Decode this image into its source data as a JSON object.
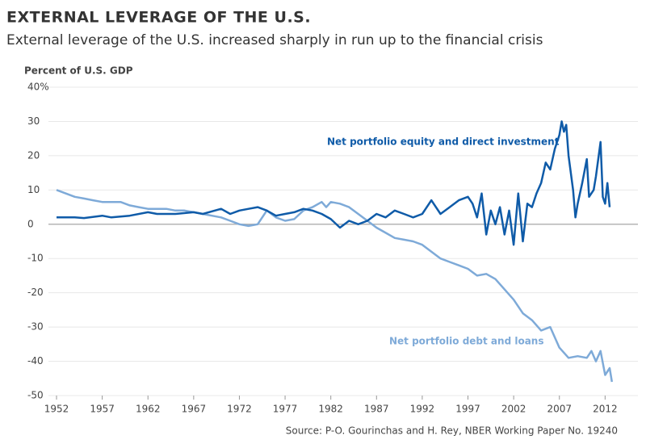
{
  "chart_data": {
    "type": "line",
    "title": "EXTERNAL LEVERAGE OF THE U.S.",
    "subtitle": "External leverage of the U.S. increased sharply in run up to the financial crisis",
    "y_label": "Percent of U.S. GDP",
    "source": "Source: P-O. Gourinchas and H. Rey, NBER Working Paper No. 19240",
    "xlim": [
      1952,
      2014
    ],
    "ylim": [
      -50,
      40
    ],
    "xticks": [
      1952,
      1957,
      1962,
      1967,
      1972,
      1977,
      1982,
      1987,
      1992,
      1997,
      2002,
      2007,
      2012
    ],
    "yticks": [
      -50,
      -40,
      -30,
      -20,
      -10,
      0,
      10,
      20,
      30,
      {
        "value": 40,
        "label": "40%"
      }
    ],
    "grid": true,
    "series": [
      {
        "name": "Net portfolio equity and direct investment",
        "color": "#0f5ba8",
        "x": [
          1952,
          1954,
          1955,
          1957,
          1958,
          1960,
          1962,
          1963,
          1965,
          1967,
          1968,
          1970,
          1971,
          1972,
          1973,
          1974,
          1975,
          1976,
          1977,
          1978,
          1979,
          1980,
          1981,
          1982,
          1983,
          1984,
          1985,
          1986,
          1987,
          1988,
          1989,
          1990,
          1991,
          1992,
          1993,
          1994,
          1995,
          1996,
          1997,
          1997.5,
          1998,
          1998.5,
          1999,
          1999.5,
          2000,
          2000.5,
          2001,
          2001.5,
          2002,
          2002.5,
          2003,
          2003.5,
          2004,
          2004.5,
          2005,
          2005.5,
          2006,
          2006.5,
          2007,
          2007.25,
          2007.5,
          2007.75,
          2008,
          2008.5,
          2008.75,
          2009,
          2009.5,
          2010,
          2010.25,
          2010.75,
          2011,
          2011.5,
          2011.75,
          2012,
          2012.25,
          2012.5
        ],
        "values": [
          2,
          2,
          1.8,
          2.5,
          2,
          2.5,
          3.5,
          3,
          3,
          3.5,
          3,
          4.5,
          3,
          4,
          4.5,
          5,
          4,
          2.5,
          3,
          3.5,
          4.5,
          4,
          3,
          1.5,
          -1,
          1,
          0,
          1,
          3,
          2,
          4,
          3,
          2,
          3,
          7,
          3,
          5,
          7,
          8,
          6,
          2,
          9,
          -3,
          4,
          0,
          5,
          -3,
          4,
          -6,
          9,
          -5,
          6,
          5,
          9,
          12,
          18,
          16,
          22,
          26,
          30,
          27,
          29,
          20,
          10,
          2,
          6,
          12,
          19,
          8,
          10,
          14,
          24,
          8,
          6,
          12,
          5
        ]
      },
      {
        "name": "Net portfolio debt and loans",
        "color": "#7eaad8",
        "x": [
          1952,
          1953,
          1954,
          1955,
          1956,
          1957,
          1958,
          1959,
          1960,
          1961,
          1962,
          1963,
          1964,
          1965,
          1966,
          1967,
          1968,
          1969,
          1970,
          1971,
          1972,
          1973,
          1974,
          1975,
          1976,
          1977,
          1978,
          1979,
          1980,
          1981,
          1981.5,
          1982,
          1983,
          1984,
          1985,
          1986,
          1987,
          1988,
          1989,
          1990,
          1991,
          1992,
          1993,
          1994,
          1995,
          1996,
          1997,
          1998,
          1999,
          2000,
          2001,
          2002,
          2003,
          2004,
          2005,
          2006,
          2007,
          2008,
          2009,
          2010,
          2010.5,
          2011,
          2011.5,
          2012,
          2012.5,
          2012.75
        ],
        "values": [
          10,
          9,
          8,
          7.5,
          7,
          6.5,
          6.5,
          6.5,
          5.5,
          5,
          4.5,
          4.5,
          4.5,
          4,
          4,
          3.5,
          3,
          2.5,
          2,
          1,
          0,
          -0.5,
          0,
          4,
          2,
          1,
          1.5,
          4,
          5,
          6.5,
          5,
          6.5,
          6,
          5,
          3,
          1,
          -1,
          -2.5,
          -4,
          -4.5,
          -5,
          -6,
          -8,
          -10,
          -11,
          -12,
          -13,
          -15,
          -14.5,
          -16,
          -19,
          -22,
          -26,
          -28,
          -31,
          -30,
          -36,
          -39,
          -38.5,
          -39,
          -37,
          -40,
          -37,
          -44,
          -42,
          -46
        ]
      }
    ]
  }
}
